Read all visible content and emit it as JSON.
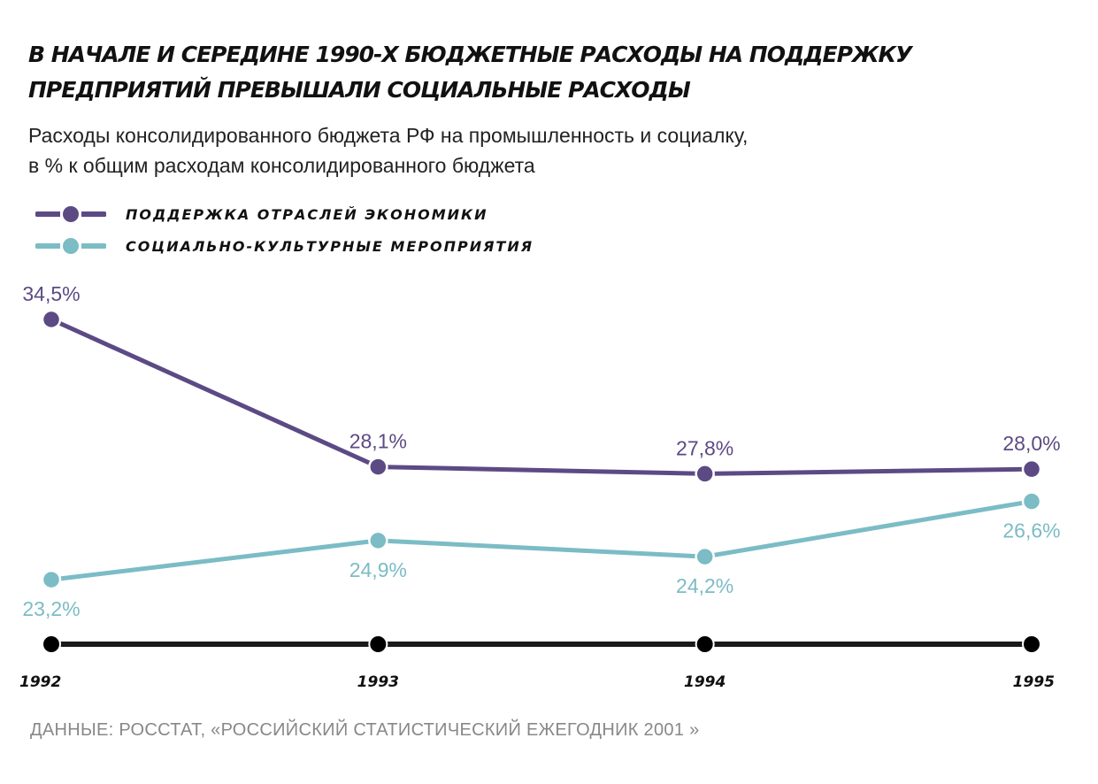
{
  "title": "В начале и середине 1990-х бюджетные расходы на поддержку предприятий превышали социальные расходы",
  "subtitle_line1": "Расходы консолидированного бюджета РФ на промышленность и социалку,",
  "subtitle_line2": "в % к общим расходам консолидированного бюджета",
  "source": "ДАННЫЕ: РОССТАТ, «РОССИЙСКИЙ СТАТИСТИЧЕСКИЙ ЕЖЕГОДНИК 2001 »",
  "chart_data": {
    "type": "line",
    "categories": [
      "1992",
      "1993",
      "1994",
      "1995"
    ],
    "series": [
      {
        "name": "ПОДДЕРЖКА ОТРАСЛЕЙ ЭКОНОМИКИ",
        "values": [
          34.5,
          28.1,
          27.8,
          28.0
        ],
        "labels": [
          "34,5%",
          "28,1%",
          "27,8%",
          "28,0%"
        ],
        "color": "#5c4a84",
        "label_position": [
          "above",
          "above",
          "above",
          "above"
        ]
      },
      {
        "name": "СОЦИАЛЬНО-КУЛЬТУРНЫЕ МЕРОПРИЯТИЯ",
        "values": [
          23.2,
          24.9,
          24.2,
          26.6
        ],
        "labels": [
          "23,2%",
          "24,9%",
          "24,2%",
          "26,6%"
        ],
        "color": "#7bbcc5",
        "label_position": [
          "below",
          "below",
          "below",
          "below"
        ]
      }
    ],
    "axis_color": "#1a1a1a",
    "grid": false,
    "legend": "top-left",
    "y_axis_shown": false,
    "ylim": [
      20.4,
      34.5
    ]
  }
}
